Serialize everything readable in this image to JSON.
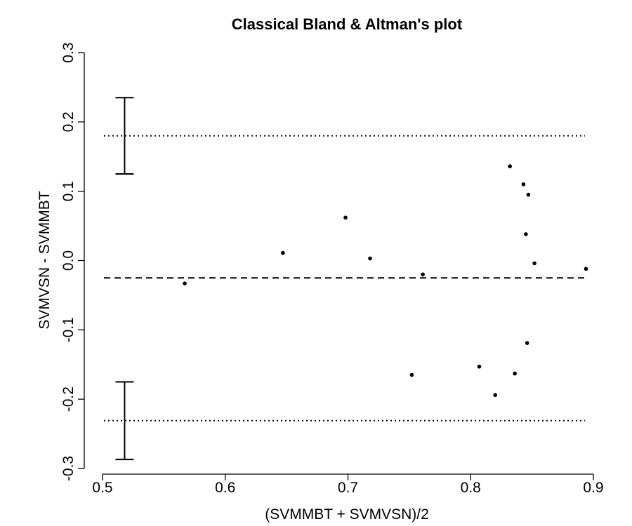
{
  "chart_data": {
    "type": "scatter",
    "title": "Classical Bland & Altman's plot",
    "xlabel": "(SVMMBT + SVMVSN)/2",
    "ylabel": "SVMVSN - SVMMBT",
    "xlim": [
      0.5,
      0.9
    ],
    "ylim": [
      -0.3,
      0.3
    ],
    "x_ticks": [
      "0.5",
      "0.6",
      "0.7",
      "0.8",
      "0.9"
    ],
    "y_ticks": [
      "-0.3",
      "-0.2",
      "-0.1",
      "0.0",
      "0.1",
      "0.2",
      "0.3"
    ],
    "points": [
      {
        "x": 0.567,
        "y": -0.033
      },
      {
        "x": 0.647,
        "y": 0.011
      },
      {
        "x": 0.698,
        "y": 0.062
      },
      {
        "x": 0.718,
        "y": 0.003
      },
      {
        "x": 0.752,
        "y": -0.165
      },
      {
        "x": 0.761,
        "y": -0.02
      },
      {
        "x": 0.807,
        "y": -0.153
      },
      {
        "x": 0.82,
        "y": -0.194
      },
      {
        "x": 0.832,
        "y": 0.136
      },
      {
        "x": 0.836,
        "y": -0.163
      },
      {
        "x": 0.843,
        "y": 0.11
      },
      {
        "x": 0.845,
        "y": 0.038
      },
      {
        "x": 0.846,
        "y": -0.119
      },
      {
        "x": 0.847,
        "y": 0.095
      },
      {
        "x": 0.852,
        "y": -0.004
      },
      {
        "x": 0.894,
        "y": -0.012
      }
    ],
    "mean_difference": -0.025,
    "upper_limit": 0.18,
    "lower_limit": -0.231,
    "upper_limit_ci": [
      0.125,
      0.235
    ],
    "lower_limit_ci": [
      -0.287,
      -0.175
    ],
    "ci_bar_x": 0.518,
    "grid": false,
    "legend": "none",
    "colors": {
      "ink": "#000000",
      "background": "#ffffff"
    }
  }
}
